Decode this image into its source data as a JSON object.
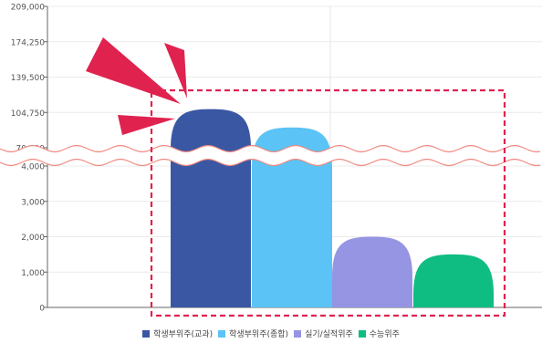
{
  "chart_data": {
    "type": "bar",
    "title": "",
    "xlabel": "",
    "ylabel": "",
    "categories": [
      "학생부위주(교과)",
      "학생부위주(종합)",
      "실기/실적위주",
      "수능위주"
    ],
    "values": [
      108000,
      90000,
      2000,
      1500
    ],
    "colors": [
      "#3a57a3",
      "#5bc3f5",
      "#9595e3",
      "#0fbd83"
    ],
    "axis_break": {
      "lower_max": 4000,
      "upper_min": 70000
    },
    "ylim": [
      0,
      209000
    ],
    "y_ticks_lower": [
      "0",
      "1,000",
      "2,000",
      "3,000",
      "4,000"
    ],
    "y_ticks_upper": [
      "70,000",
      "104,750",
      "139,500",
      "174,250",
      "209,000"
    ],
    "y_tick_values_lower": [
      0,
      1000,
      2000,
      3000,
      4000
    ],
    "y_tick_values_upper": [
      70000,
      104750,
      139500,
      174250,
      209000
    ],
    "grid": true,
    "legend_position": "bottom",
    "annotation": {
      "type": "dashed-highlight-box",
      "color": "#e0224f",
      "target": "bars"
    }
  }
}
